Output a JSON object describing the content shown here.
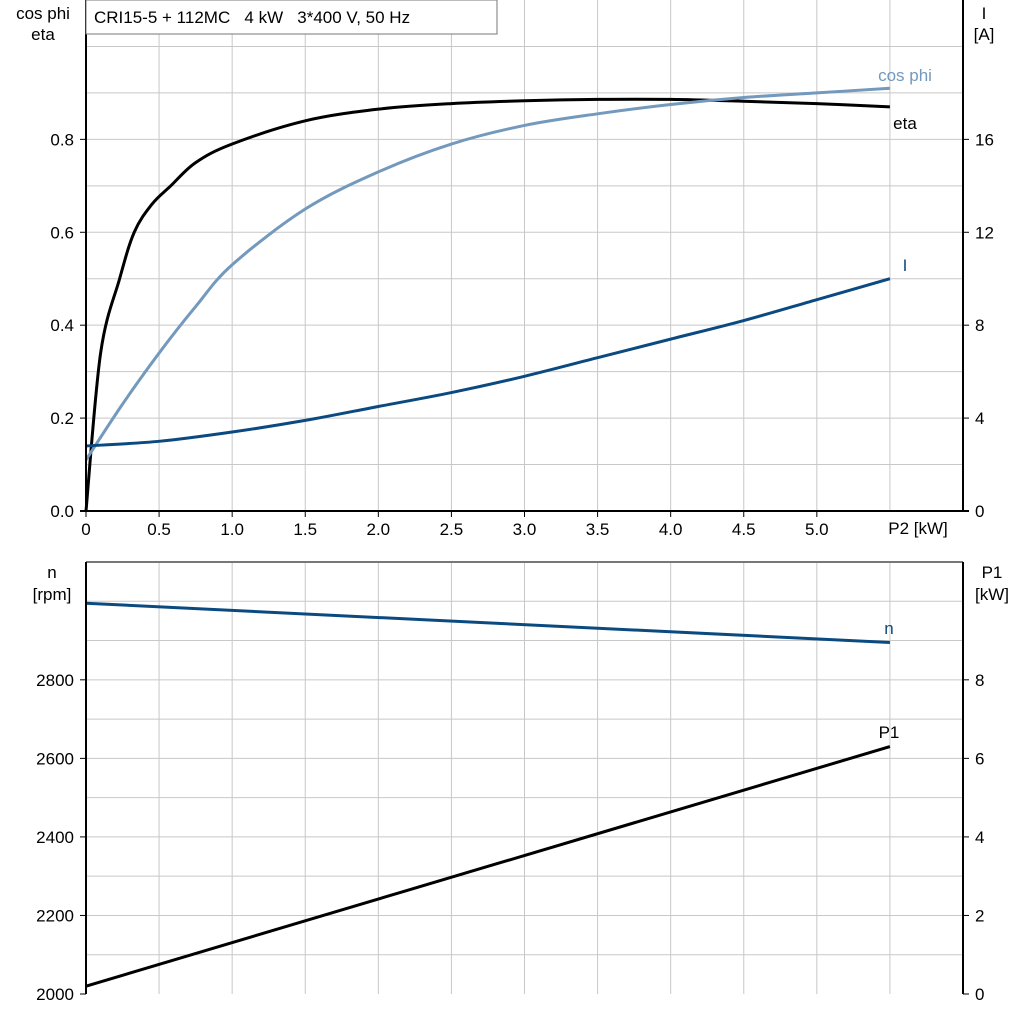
{
  "colors": {
    "eta": "#000000",
    "cos_phi": "#7399bd",
    "I": "#0b4a80",
    "n": "#0b4a80",
    "P1": "#000000",
    "grid": "#c8c8c8"
  },
  "chart_data": [
    {
      "type": "line",
      "title": "CRI15-5 + 112MC   4 kW   3*400 V, 50 Hz",
      "xlabel": "P2 [kW]",
      "ylabel_left": [
        "cos phi",
        "eta"
      ],
      "ylabel_right": [
        "I",
        "[A]"
      ],
      "xlim": [
        0,
        6.0
      ],
      "ylim_left": [
        0,
        1.1
      ],
      "ylim_right": [
        0,
        22
      ],
      "x_ticks": [
        "0",
        "0.5",
        "1.0",
        "1.5",
        "2.0",
        "2.5",
        "3.0",
        "3.5",
        "4.0",
        "4.5",
        "5.0"
      ],
      "y_ticks_left": [
        "0.0",
        "0.2",
        "0.4",
        "0.6",
        "0.8"
      ],
      "y_ticks_right": [
        "0",
        "4",
        "8",
        "12",
        "16"
      ],
      "grid": true,
      "series": [
        {
          "name": "eta",
          "axis": "left",
          "x": [
            0,
            0.1,
            0.23,
            0.33,
            0.45,
            0.58,
            0.75,
            1.0,
            1.5,
            2.0,
            2.5,
            3.0,
            3.5,
            4.0,
            4.5,
            5.0,
            5.5
          ],
          "y": [
            0,
            0.34,
            0.5,
            0.6,
            0.66,
            0.7,
            0.75,
            0.79,
            0.84,
            0.865,
            0.877,
            0.883,
            0.886,
            0.886,
            0.882,
            0.877,
            0.87
          ]
        },
        {
          "name": "cos phi",
          "axis": "left",
          "x": [
            0,
            0.25,
            0.5,
            0.75,
            1.0,
            1.5,
            2.0,
            2.5,
            3.0,
            3.5,
            4.0,
            4.5,
            5.0,
            5.5
          ],
          "y": [
            0.11,
            0.23,
            0.34,
            0.44,
            0.53,
            0.65,
            0.73,
            0.79,
            0.83,
            0.855,
            0.875,
            0.89,
            0.9,
            0.91
          ]
        },
        {
          "name": "I",
          "axis": "right",
          "x": [
            0,
            0.5,
            1.0,
            1.5,
            2.0,
            2.5,
            3.0,
            3.5,
            4.0,
            4.5,
            5.0,
            5.5
          ],
          "y": [
            2.8,
            3.0,
            3.4,
            3.9,
            4.5,
            5.1,
            5.8,
            6.6,
            7.4,
            8.2,
            9.1,
            10.0
          ]
        }
      ]
    },
    {
      "type": "line",
      "ylabel_left": [
        "n",
        "[rpm]"
      ],
      "ylabel_right": [
        "P1",
        "[kW]"
      ],
      "xlim": [
        0,
        6.0
      ],
      "ylim_left": [
        2000,
        3100
      ],
      "ylim_right": [
        0,
        11
      ],
      "y_ticks_left": [
        "2000",
        "2200",
        "2400",
        "2600",
        "2800"
      ],
      "y_ticks_right": [
        "0",
        "2",
        "4",
        "6",
        "8"
      ],
      "grid": true,
      "series": [
        {
          "name": "n",
          "axis": "left",
          "x": [
            0,
            5.5
          ],
          "y": [
            2995,
            2895
          ]
        },
        {
          "name": "P1",
          "axis": "right",
          "x": [
            0,
            5.5
          ],
          "y": [
            0.2,
            6.3
          ]
        }
      ]
    }
  ]
}
